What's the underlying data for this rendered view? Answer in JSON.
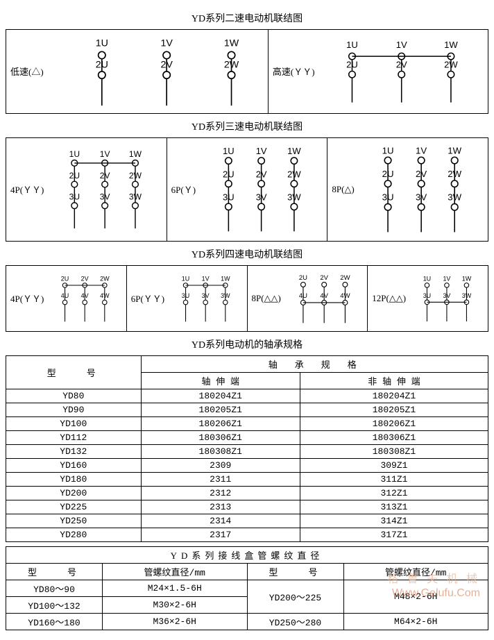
{
  "colors": {
    "stroke": "#000000",
    "bg": "#ffffff",
    "watermark": "#e8b090"
  },
  "titles": {
    "two_speed": "YD系列二速电动机联结图",
    "three_speed": "YD系列三速电动机联结图",
    "four_speed": "YD系列四速电动机联结图",
    "bearing": "YD系列电动机的轴承规格",
    "thread": "YD系列接线盒管螺纹直径"
  },
  "two_speed": {
    "low": {
      "label": "低速(△)",
      "top": [
        "1U",
        "1V",
        "1W"
      ],
      "mid": [
        "2U",
        "2V",
        "2W"
      ],
      "connect_top": false,
      "tails_from": "mid"
    },
    "high": {
      "label": "高速(ＹＹ)",
      "top": [
        "1U",
        "1V",
        "1W"
      ],
      "mid": [
        "2U",
        "2V",
        "2W"
      ],
      "connect_top": true,
      "tails_from": "mid"
    }
  },
  "three_speed": {
    "p4": {
      "label": "4P(ＹＹ)",
      "rows": [
        [
          "1U",
          "1V",
          "1W"
        ],
        [
          "2U",
          "2V",
          "2W"
        ],
        [
          "3U",
          "3V",
          "3W"
        ]
      ],
      "connect_row": 0,
      "tails_from": 2
    },
    "p6": {
      "label": "6P(Ｙ)",
      "rows": [
        [
          "1U",
          "1V",
          "1W"
        ],
        [
          "2U",
          "2V",
          "2W"
        ],
        [
          "3U",
          "3V",
          "3W"
        ]
      ],
      "connect_row": null,
      "tails_from": 2
    },
    "p8": {
      "label": "8P(△)",
      "rows": [
        [
          "1U",
          "1V",
          "1W"
        ],
        [
          "2U",
          "2V",
          "2W"
        ],
        [
          "3U",
          "3V",
          "3W"
        ]
      ],
      "connect_row": null,
      "tails_from": 2
    }
  },
  "four_speed": {
    "p4": {
      "label": "4P(ＹＹ)",
      "rows": [
        [
          "2U",
          "2V",
          "2W"
        ],
        [
          "4U",
          "4V",
          "4W"
        ]
      ],
      "connect_row": 0,
      "tails_from": 1
    },
    "p6": {
      "label": "6P(ＹＹ)",
      "rows": [
        [
          "1U",
          "1V",
          "1W"
        ],
        [
          "3U",
          "3V",
          "3W"
        ]
      ],
      "connect_row": 0,
      "tails_from": 1
    },
    "p8": {
      "label": "8P(△△)",
      "rows": [
        [
          "2U",
          "2V",
          "2W"
        ],
        [
          "4U",
          "4V",
          "4W"
        ]
      ],
      "connect_row": 1,
      "tails_from": 1
    },
    "p12": {
      "label": "12P(△△)",
      "rows": [
        [
          "1U",
          "1V",
          "1W"
        ],
        [
          "3U",
          "3V",
          "3W"
        ]
      ],
      "connect_row": 1,
      "tails_from": 1
    }
  },
  "bearing_table": {
    "header_model": "型　　号",
    "header_spec": "轴　承　规　格",
    "header_shaft": "轴 伸 端",
    "header_nonshaft": "非 轴 伸 端",
    "rows": [
      [
        "YD80",
        "180204Z1",
        "180204Z1"
      ],
      [
        "YD90",
        "180205Z1",
        "180205Z1"
      ],
      [
        "YD100",
        "180206Z1",
        "180206Z1"
      ],
      [
        "YD112",
        "180306Z1",
        "180306Z1"
      ],
      [
        "YD132",
        "180308Z1",
        "180308Z1"
      ],
      [
        "YD160",
        "2309",
        "309Z1"
      ],
      [
        "YD180",
        "2311",
        "311Z1"
      ],
      [
        "YD200",
        "2312",
        "312Z1"
      ],
      [
        "YD225",
        "2313",
        "313Z1"
      ],
      [
        "YD250",
        "2314",
        "314Z1"
      ],
      [
        "YD280",
        "2317",
        "317Z1"
      ]
    ]
  },
  "thread_table": {
    "header_model": "型　　号",
    "header_dia": "管螺纹直径/mm",
    "rows_left": [
      [
        "YD80～90",
        "M24×1.5-6H"
      ],
      [
        "YD100～132",
        "M30×2-6H"
      ],
      [
        "YD160～180",
        "M36×2-6H"
      ]
    ],
    "rows_right": [
      [
        "YD200～225",
        "M48×2-6H"
      ],
      [
        "YD250～280",
        "M64×2-6H"
      ]
    ]
  },
  "watermark_main": "格 鲁 夫 机 械",
  "watermark_url": "Www.Gelufu.Com"
}
